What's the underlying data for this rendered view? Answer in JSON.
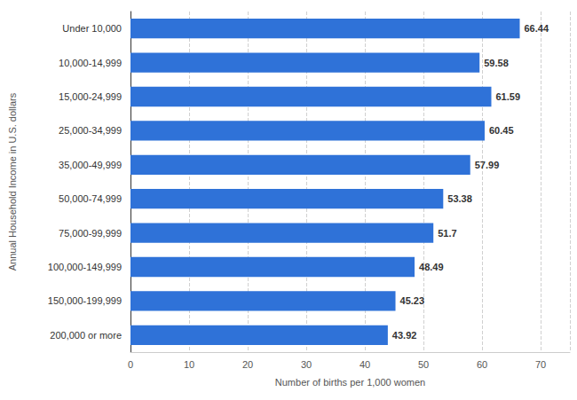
{
  "chart_data": {
    "type": "bar",
    "orientation": "horizontal",
    "x_label": "Number of births per 1,000 women",
    "y_label": "Annual Household Income in U.S. dollars",
    "categories": [
      "Under 10,000",
      "10,000-14,999",
      "15,000-24,999",
      "25,000-34,999",
      "35,000-49,999",
      "50,000-74,999",
      "75,000-99,999",
      "100,000-149,999",
      "150,000-199,999",
      "200,000 or more"
    ],
    "values": [
      66.44,
      59.58,
      61.59,
      60.45,
      57.99,
      53.38,
      51.7,
      48.49,
      45.23,
      43.92
    ],
    "color": "#2f72d8",
    "xlim": [
      0,
      75
    ],
    "xticks": [
      0,
      10,
      20,
      30,
      40,
      50,
      60,
      70
    ],
    "grid": true,
    "data_labels": true
  }
}
